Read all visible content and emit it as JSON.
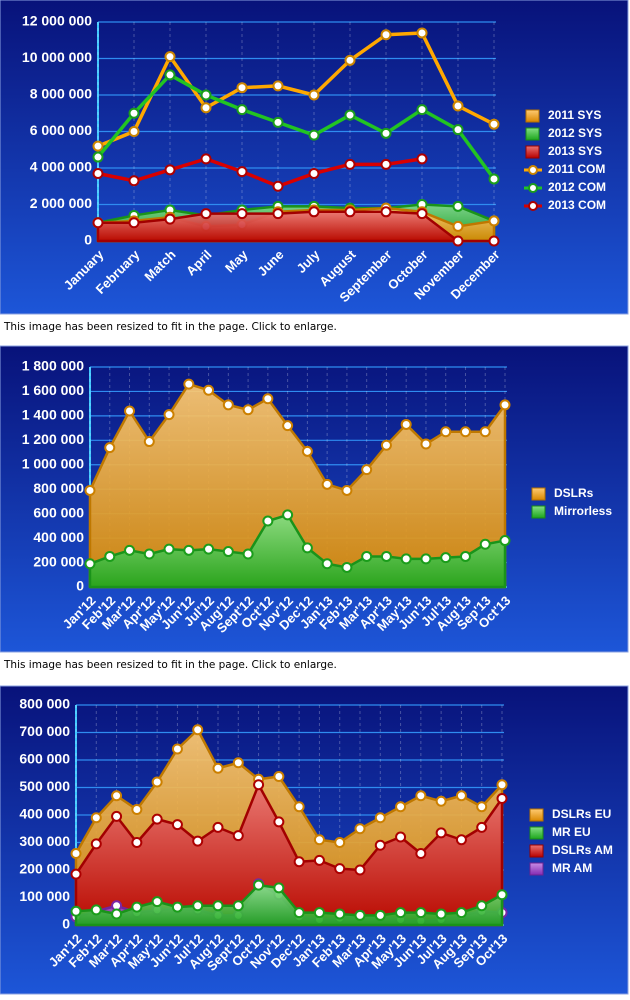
{
  "captions": [
    "This image has been resized to fit in the page. Click to enlarge.",
    "This image has been resized to fit in the page. Click to enlarge."
  ],
  "chart_data": [
    {
      "type": "combo",
      "categories": [
        "January",
        "February",
        "Match",
        "April",
        "May",
        "June",
        "July",
        "August",
        "September",
        "October",
        "November",
        "December"
      ],
      "ylim": [
        0,
        12000000
      ],
      "yticks": [
        0,
        {
          "value": 2000000,
          "label": "2 000 000"
        },
        {
          "value": 4000000,
          "label": "4 000 000"
        },
        {
          "value": 6000000,
          "label": "6 000 000"
        },
        {
          "value": 8000000,
          "label": "8 000 000"
        },
        {
          "value": 10000000,
          "label": "10 000 000"
        },
        {
          "value": 12000000,
          "label": "12 000 000"
        }
      ],
      "grid": true,
      "legend": "right",
      "series": [
        {
          "name": "2011 SYS",
          "type": "area",
          "color": "#ff9f00",
          "values": [
            1000000,
            1100000,
            1300000,
            800000,
            900000,
            1600000,
            1700000,
            1700000,
            1800000,
            1600000,
            800000,
            1100000
          ]
        },
        {
          "name": "2012 SYS",
          "type": "area",
          "color": "#22c422",
          "values": [
            1000000,
            1400000,
            1700000,
            1400000,
            1700000,
            1900000,
            1900000,
            1800000,
            1800000,
            2000000,
            1900000,
            1100000
          ]
        },
        {
          "name": "2013 SYS",
          "type": "area",
          "color": "#d80000",
          "values": [
            1000000,
            1000000,
            1200000,
            1500000,
            1500000,
            1500000,
            1600000,
            1600000,
            1600000,
            1500000,
            0,
            0
          ]
        },
        {
          "name": "2011 COM",
          "type": "line",
          "color": "#ffa800",
          "values": [
            5200000,
            6000000,
            10100000,
            7300000,
            8400000,
            8500000,
            8000000,
            9900000,
            11300000,
            11400000,
            7400000,
            6400000
          ]
        },
        {
          "name": "2012 COM",
          "type": "line",
          "color": "#22c422",
          "values": [
            4600000,
            7000000,
            9100000,
            8000000,
            7200000,
            6500000,
            5800000,
            6900000,
            5900000,
            7200000,
            6100000,
            3400000
          ]
        },
        {
          "name": "2013 COM",
          "type": "line",
          "color": "#d80000",
          "values": [
            3700000,
            3300000,
            3900000,
            4500000,
            3800000,
            3000000,
            3700000,
            4200000,
            4200000,
            4500000,
            null,
            null
          ]
        }
      ]
    },
    {
      "type": "area",
      "categories": [
        "Jan'12",
        "Feb'12",
        "Mar'12",
        "Apr'12",
        "May'12",
        "Jun'12",
        "Jul'12",
        "Aug'12",
        "Sept'12",
        "Oct'12",
        "Nov'12",
        "Dec'12",
        "Jan'13",
        "Feb'13",
        "Mar'13",
        "Apr'13",
        "May'13",
        "Jun'13",
        "Jul'13",
        "Aug'13",
        "Sep'13",
        "Oct'13"
      ],
      "ylim": [
        0,
        1800000
      ],
      "yticks": [
        0,
        {
          "value": 200000,
          "label": "200 000"
        },
        {
          "value": 400000,
          "label": "400 000"
        },
        {
          "value": 600000,
          "label": "600 000"
        },
        {
          "value": 800000,
          "label": "800 000"
        },
        {
          "value": 1000000,
          "label": "1 000 000"
        },
        {
          "value": 1200000,
          "label": "1 200 000"
        },
        {
          "value": 1400000,
          "label": "1 400 000"
        },
        {
          "value": 1600000,
          "label": "1 600 000"
        },
        {
          "value": 1800000,
          "label": "1 800 000"
        }
      ],
      "grid": true,
      "legend": "right",
      "series": [
        {
          "name": "DSLRs",
          "color": "#ffa000",
          "values": [
            790000,
            1140000,
            1440000,
            1190000,
            1410000,
            1660000,
            1610000,
            1490000,
            1450000,
            1540000,
            1320000,
            1110000,
            840000,
            790000,
            960000,
            1160000,
            1330000,
            1170000,
            1270000,
            1270000,
            1270000,
            1490000
          ]
        },
        {
          "name": "Mirrorless",
          "color": "#22c422",
          "values": [
            190000,
            250000,
            300000,
            270000,
            310000,
            300000,
            310000,
            290000,
            270000,
            540000,
            590000,
            320000,
            190000,
            160000,
            250000,
            250000,
            230000,
            230000,
            240000,
            250000,
            350000,
            380000
          ]
        }
      ]
    },
    {
      "type": "area",
      "categories": [
        "Jan'12",
        "Feb'12",
        "Mar'12",
        "Apr'12",
        "May'12",
        "Jun'12",
        "Jul'12",
        "Aug'12",
        "Sept'12",
        "Oct'12",
        "Nov'12",
        "Dec'12",
        "Jan'13",
        "Feb'13",
        "Mar'13",
        "Apr'13",
        "May'13",
        "Jun'13",
        "Jul'13",
        "Aug'13",
        "Sep'13",
        "Oct'13"
      ],
      "ylim": [
        0,
        800000
      ],
      "yticks": [
        0,
        {
          "value": 100000,
          "label": "100 000"
        },
        {
          "value": 200000,
          "label": "200 000"
        },
        {
          "value": 300000,
          "label": "300 000"
        },
        {
          "value": 400000,
          "label": "400 000"
        },
        {
          "value": 500000,
          "label": "500 000"
        },
        {
          "value": 600000,
          "label": "600 000"
        },
        {
          "value": 700000,
          "label": "700 000"
        },
        {
          "value": 800000,
          "label": "800 000"
        }
      ],
      "grid": true,
      "legend": "right",
      "series": [
        {
          "name": "DSLRs EU",
          "color": "#ffa000",
          "values": [
            260000,
            390000,
            470000,
            420000,
            520000,
            640000,
            710000,
            570000,
            590000,
            530000,
            540000,
            430000,
            310000,
            300000,
            350000,
            390000,
            430000,
            470000,
            450000,
            470000,
            430000,
            510000
          ]
        },
        {
          "name": "MR EU",
          "color": "#22c422",
          "values": [
            50000,
            55000,
            40000,
            65000,
            85000,
            65000,
            70000,
            70000,
            70000,
            145000,
            135000,
            45000,
            45000,
            40000,
            35000,
            35000,
            45000,
            45000,
            40000,
            45000,
            70000,
            110000
          ]
        },
        {
          "name": "DSLRs AM",
          "color": "#d80000",
          "values": [
            185000,
            295000,
            395000,
            300000,
            385000,
            365000,
            305000,
            355000,
            325000,
            510000,
            375000,
            230000,
            235000,
            205000,
            200000,
            290000,
            320000,
            260000,
            335000,
            310000,
            355000,
            460000
          ]
        },
        {
          "name": "MR AM",
          "color": "#9a30d0",
          "values": [
            30000,
            50000,
            70000,
            45000,
            55000,
            60000,
            55000,
            35000,
            35000,
            150000,
            110000,
            30000,
            20000,
            25000,
            35000,
            30000,
            20000,
            15000,
            20000,
            35000,
            50000,
            45000
          ]
        }
      ]
    }
  ]
}
